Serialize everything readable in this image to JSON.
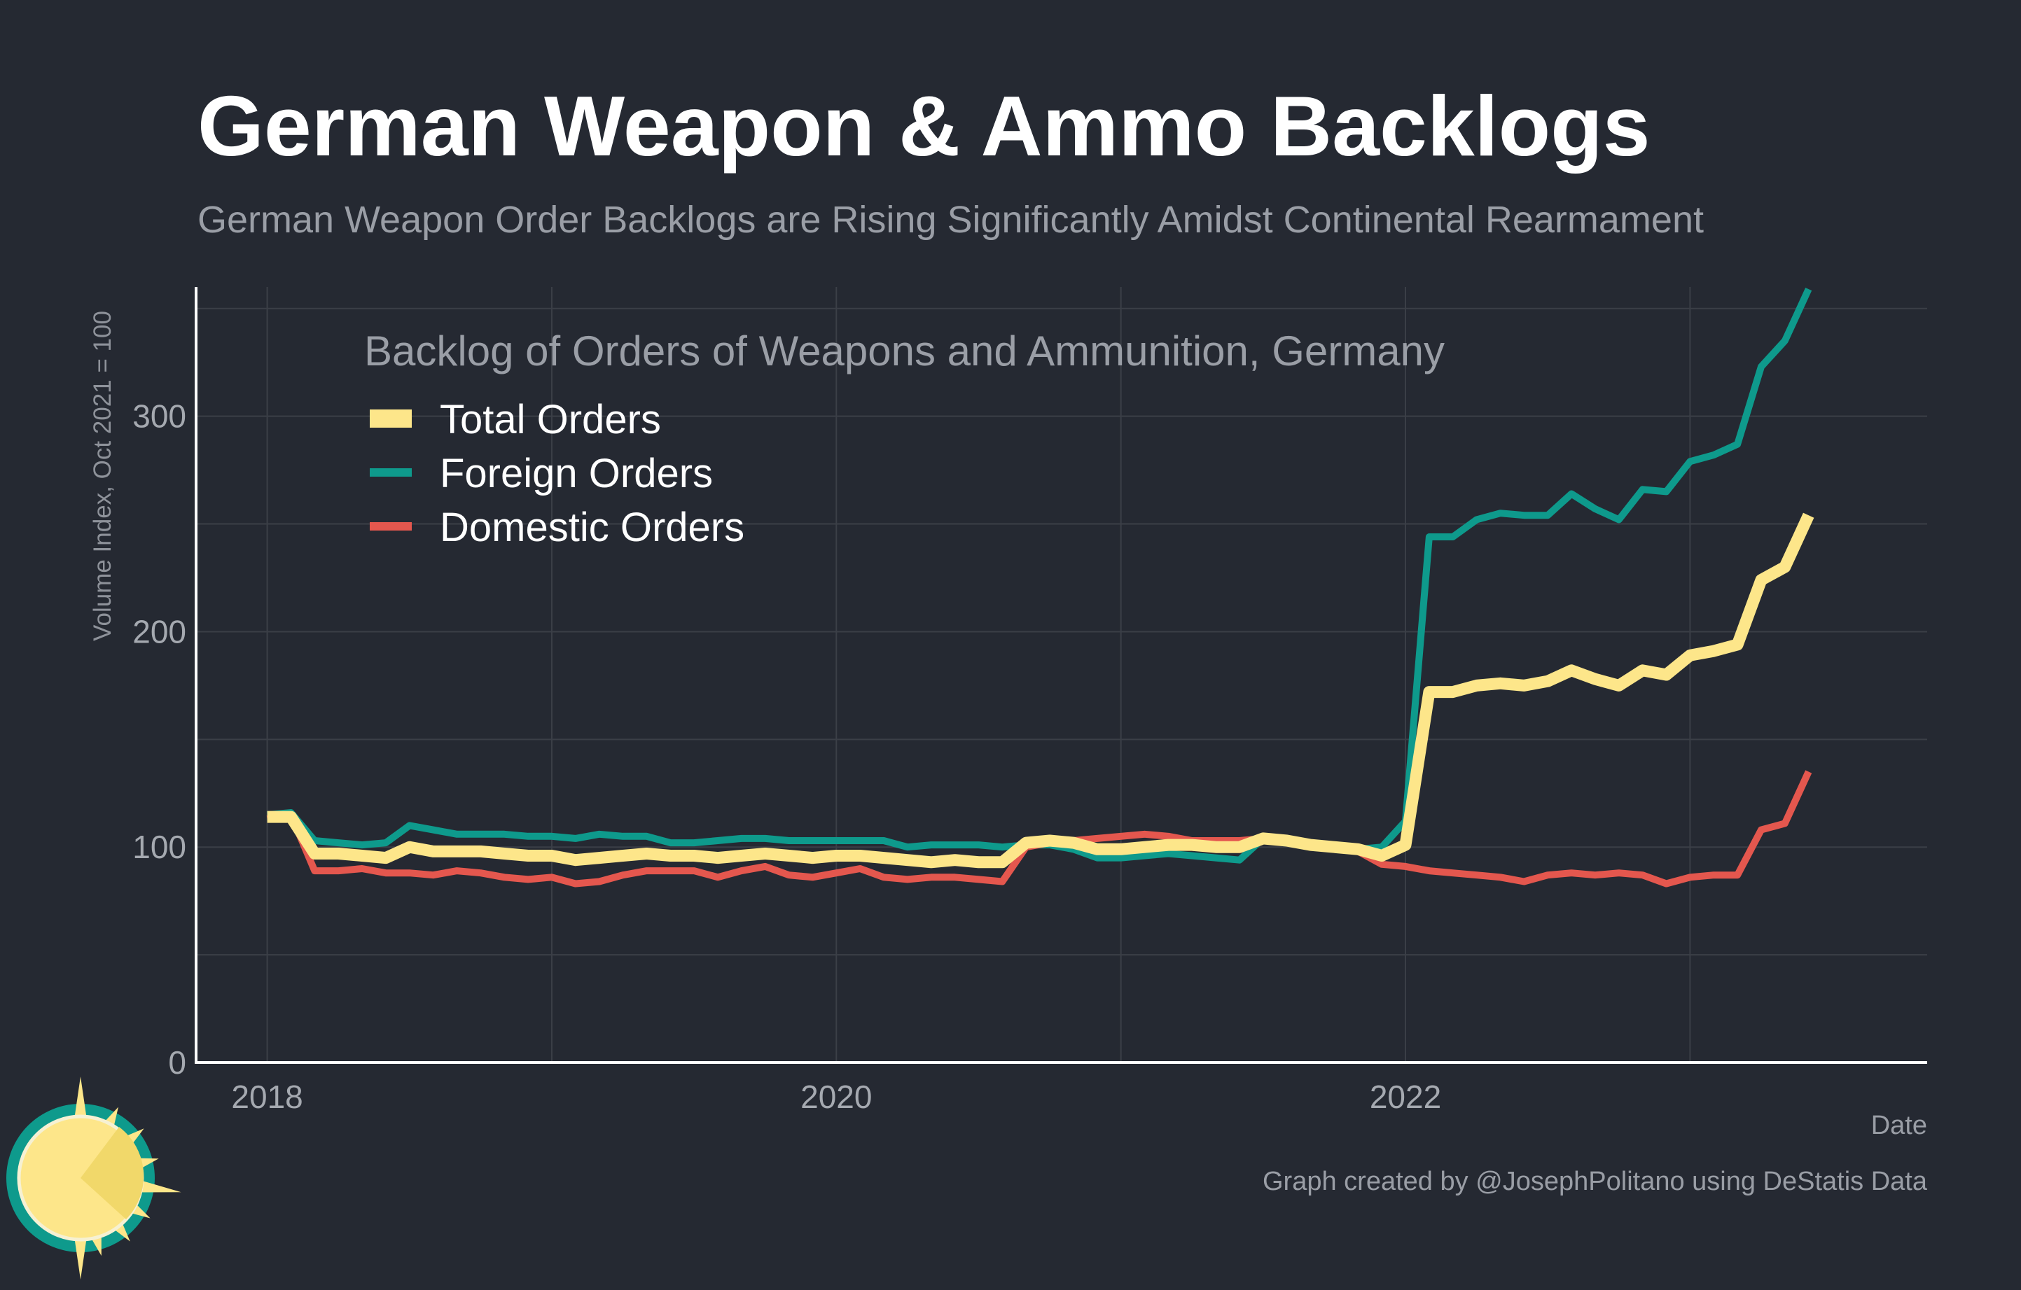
{
  "chart_data": {
    "type": "line",
    "title": "German Weapon & Ammo Backlogs",
    "subtitle": "German Weapon Order Backlogs are Rising Significantly Amidst Continental Rearmament",
    "xlabel": "Date",
    "ylabel": "Volume Index, Oct 2021 = 100",
    "legend_title": "Backlog of Orders of Weapons and Ammunition, Germany",
    "legend_position": "top-left",
    "caption": "Graph created by @JosephPolitano using DeStatis Data",
    "grid": true,
    "x_ticks": [
      "2018",
      "2020",
      "2022"
    ],
    "y_ticks": [
      0,
      100,
      200,
      300
    ],
    "xlim": [
      "2017-10",
      "2023-11"
    ],
    "ylim": [
      0,
      360
    ],
    "x": [
      "2018-01",
      "2018-02",
      "2018-03",
      "2018-04",
      "2018-05",
      "2018-06",
      "2018-07",
      "2018-08",
      "2018-09",
      "2018-10",
      "2018-11",
      "2018-12",
      "2019-01",
      "2019-02",
      "2019-03",
      "2019-04",
      "2019-05",
      "2019-06",
      "2019-07",
      "2019-08",
      "2019-09",
      "2019-10",
      "2019-11",
      "2019-12",
      "2020-01",
      "2020-02",
      "2020-03",
      "2020-04",
      "2020-05",
      "2020-06",
      "2020-07",
      "2020-08",
      "2020-09",
      "2020-10",
      "2020-11",
      "2020-12",
      "2021-01",
      "2021-02",
      "2021-03",
      "2021-04",
      "2021-05",
      "2021-06",
      "2021-07",
      "2021-08",
      "2021-09",
      "2021-10",
      "2021-11",
      "2021-12",
      "2022-01",
      "2022-02",
      "2022-03",
      "2022-04",
      "2022-05",
      "2022-06",
      "2022-07",
      "2022-08",
      "2022-09",
      "2022-10",
      "2022-11",
      "2022-12",
      "2023-01",
      "2023-02",
      "2023-03",
      "2023-04",
      "2023-05",
      "2023-06"
    ],
    "series": [
      {
        "name": "Foreign Orders",
        "color": "#0e9a8c",
        "values": [
          115,
          116,
          103,
          102,
          101,
          102,
          110,
          108,
          106,
          106,
          106,
          105,
          105,
          104,
          106,
          105,
          105,
          102,
          102,
          103,
          104,
          104,
          103,
          103,
          103,
          103,
          103,
          100,
          101,
          101,
          101,
          100,
          101,
          101,
          99,
          95,
          95,
          96,
          97,
          96,
          95,
          94,
          104,
          103,
          101,
          100,
          99,
          100,
          112,
          244,
          244,
          252,
          255,
          254,
          254,
          264,
          257,
          252,
          266,
          265,
          279,
          282,
          287,
          323,
          335,
          359
        ]
      },
      {
        "name": "Domestic Orders",
        "color": "#e4574e",
        "values": [
          113,
          115,
          89,
          89,
          90,
          88,
          88,
          87,
          89,
          88,
          86,
          85,
          86,
          83,
          84,
          87,
          89,
          89,
          89,
          86,
          89,
          91,
          87,
          86,
          88,
          90,
          86,
          85,
          86,
          86,
          85,
          84,
          100,
          102,
          103,
          104,
          105,
          106,
          105,
          103,
          103,
          103,
          104,
          103,
          101,
          100,
          98,
          92,
          91,
          89,
          88,
          87,
          86,
          84,
          87,
          88,
          87,
          88,
          87,
          83,
          86,
          87,
          87,
          108,
          111,
          135
        ]
      },
      {
        "name": "Total Orders",
        "color": "#fde68a",
        "values": [
          114,
          114,
          97,
          97,
          96,
          95,
          100,
          98,
          98,
          98,
          97,
          96,
          96,
          94,
          95,
          96,
          97,
          96,
          96,
          95,
          96,
          97,
          96,
          95,
          96,
          96,
          95,
          94,
          93,
          94,
          93,
          93,
          102,
          103,
          102,
          99,
          99,
          100,
          101,
          101,
          100,
          100,
          104,
          103,
          101,
          100,
          99,
          96,
          101,
          172,
          172,
          175,
          176,
          175,
          177,
          182,
          178,
          175,
          182,
          180,
          189,
          191,
          194,
          224,
          230,
          254
        ]
      }
    ]
  },
  "logo": {
    "name": "sun-logo",
    "ring_color": "#0e9a8c",
    "sun_color": "#fde68a"
  }
}
